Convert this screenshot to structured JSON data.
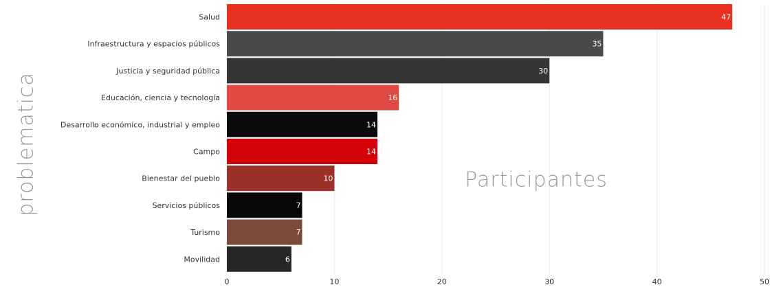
{
  "chart_data": {
    "type": "bar",
    "orientation": "horizontal",
    "categories": [
      "Salud",
      "Infraestructura y espacios públicos",
      "Justicia y seguridad pública",
      "Educación, ciencia y tecnología",
      "Desarrollo económico, industrial y empleo",
      "Campo",
      "Bienestar del pueblo",
      "Servicios públicos",
      "Turismo",
      "Movilidad"
    ],
    "values": [
      47,
      35,
      30,
      16,
      14,
      14,
      10,
      7,
      7,
      6
    ],
    "value_labels": [
      "47",
      "35",
      "30",
      "16",
      "14",
      "14",
      "10",
      "7",
      "7",
      "6"
    ],
    "colors": [
      "#e8311f",
      "#4a4a4a",
      "#363636",
      "#df4a44",
      "#0a0a0a",
      "#d4000a",
      "#9a3128",
      "#080808",
      "#7a4a3c",
      "#262626"
    ],
    "xlabel": "Participantes",
    "ylabel": "problematica",
    "xlim": [
      0,
      50
    ],
    "xticks": [
      0,
      10,
      20,
      30,
      40,
      50
    ],
    "xtick_labels": [
      "0",
      "10",
      "20",
      "30",
      "40",
      "50"
    ],
    "grid": "vertical"
  }
}
